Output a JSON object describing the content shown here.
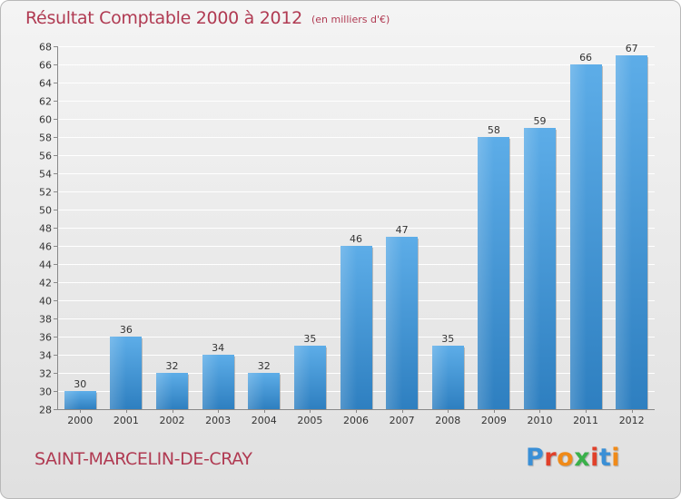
{
  "header": {
    "title": "Résultat Comptable 2000 à 2012",
    "subtitle": "(en milliers d'€)"
  },
  "footer": {
    "commune": "SAINT-MARCELIN-DE-CRAY",
    "logo_text": "Proxiti",
    "logo_letters": [
      "P",
      "r",
      "o",
      "x",
      "i",
      "t",
      "i"
    ],
    "logo_colors": [
      "#3a8fd6",
      "#e0402a",
      "#f08a18",
      "#3ab04a",
      "#e0402a",
      "#3a8fd6",
      "#f08a18"
    ]
  },
  "colors": {
    "title": "#b03a52",
    "bar_light": "#5dade8",
    "bar_dark": "#2e7fc0",
    "grid": "#ffffff"
  },
  "chart_data": {
    "type": "bar",
    "title": "Résultat Comptable 2000 à 2012",
    "subtitle": "(en milliers d'€)",
    "xlabel": "",
    "ylabel": "",
    "categories": [
      "2000",
      "2001",
      "2002",
      "2003",
      "2004",
      "2005",
      "2006",
      "2007",
      "2008",
      "2009",
      "2010",
      "2011",
      "2012"
    ],
    "values": [
      30,
      36,
      32,
      34,
      32,
      35,
      46,
      47,
      35,
      58,
      59,
      66,
      67
    ],
    "ylim": [
      28,
      68
    ],
    "yticks": [
      28,
      30,
      32,
      34,
      36,
      38,
      40,
      42,
      44,
      46,
      48,
      50,
      52,
      54,
      56,
      58,
      60,
      62,
      64,
      66,
      68
    ],
    "grid": true,
    "legend": "none",
    "data_labels": true
  }
}
